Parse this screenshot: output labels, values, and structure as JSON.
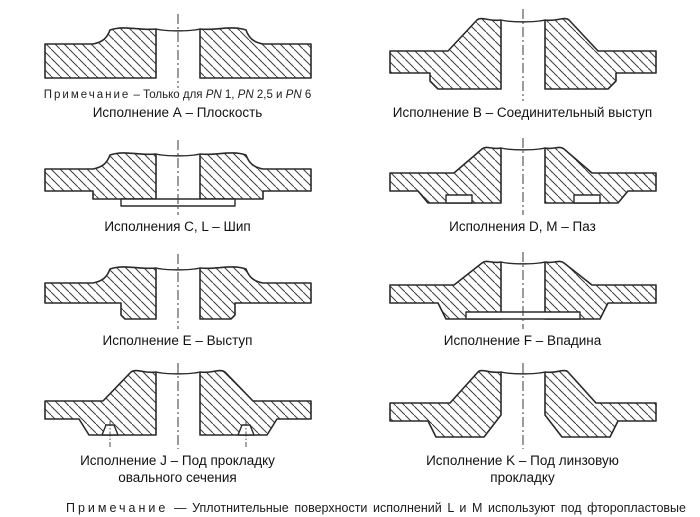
{
  "figures": [
    {
      "id": "A",
      "note_label": "Примечание",
      "note_text": "– Только для PN 1, PN 2,5 и PN 6",
      "caption": "Исполнение А – Плоскость"
    },
    {
      "id": "B",
      "caption": "Исполнение B – Соединительный выступ"
    },
    {
      "id": "C",
      "caption": "Исполнения C, L – Шип"
    },
    {
      "id": "D",
      "caption": "Исполнения D, M – Паз"
    },
    {
      "id": "E",
      "caption": "Исполнение E – Выступ"
    },
    {
      "id": "F",
      "caption": "Исполнение F – Впадина"
    },
    {
      "id": "J",
      "caption": "Исполнение J – Под прокладку",
      "caption2": "овального сечения"
    },
    {
      "id": "K",
      "caption": "Исполнение K – Под линзовую",
      "caption2": "прокладку"
    }
  ],
  "footnote": {
    "label": "Примечание",
    "text": "— Уплотнительные поверхности исполнений L и M используют под фторопластовые прокладки."
  },
  "colors": {
    "line": "#2a2a2a",
    "background": "#ffffff"
  }
}
